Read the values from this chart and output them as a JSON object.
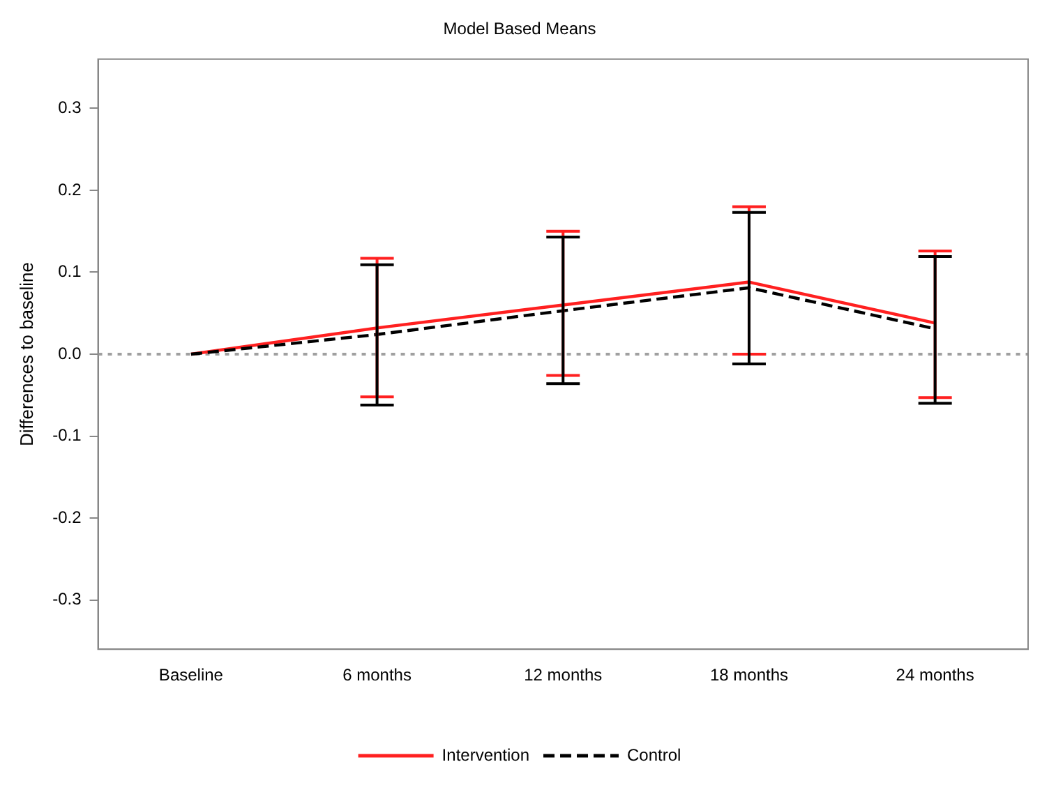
{
  "chart_data": {
    "type": "line",
    "title": "Model Based Means",
    "ylabel": "Differences to baseline",
    "categories": [
      "Baseline",
      "6 months",
      "12 months",
      "18 months",
      "24 months"
    ],
    "series": [
      {
        "name": "Intervention",
        "color": "#ff2020",
        "line_style": "solid",
        "values": [
          0,
          0.032,
          0.06,
          0.088,
          0.038
        ],
        "errors": [
          null,
          [
            -0.052,
            0.117
          ],
          [
            -0.026,
            0.15
          ],
          [
            0.0,
            0.18
          ],
          [
            -0.053,
            0.126
          ]
        ]
      },
      {
        "name": "Control",
        "color": "#000000",
        "line_style": "dashed",
        "values": [
          0,
          0.024,
          0.053,
          0.081,
          0.031
        ],
        "errors": [
          null,
          [
            -0.062,
            0.109
          ],
          [
            -0.036,
            0.143
          ],
          [
            -0.012,
            0.173
          ],
          [
            -0.06,
            0.119
          ]
        ]
      }
    ],
    "ylim": [
      -0.36,
      0.36
    ],
    "yticks": [
      {
        "value": -0.3,
        "label": "-0.3"
      },
      {
        "value": -0.2,
        "label": "-0.2"
      },
      {
        "value": -0.1,
        "label": "-0.1"
      },
      {
        "value": 0,
        "label": "0.0"
      },
      {
        "value": 0.1,
        "label": "0.1"
      },
      {
        "value": 0.2,
        "label": "0.2"
      },
      {
        "value": 0.3,
        "label": "0.3"
      }
    ],
    "ref_lines": [
      {
        "axis": "y",
        "value": 0,
        "color": "#a0a0a0",
        "line_style": "dotted"
      }
    ],
    "grid": false,
    "legend": "bottom",
    "marker": "none"
  }
}
